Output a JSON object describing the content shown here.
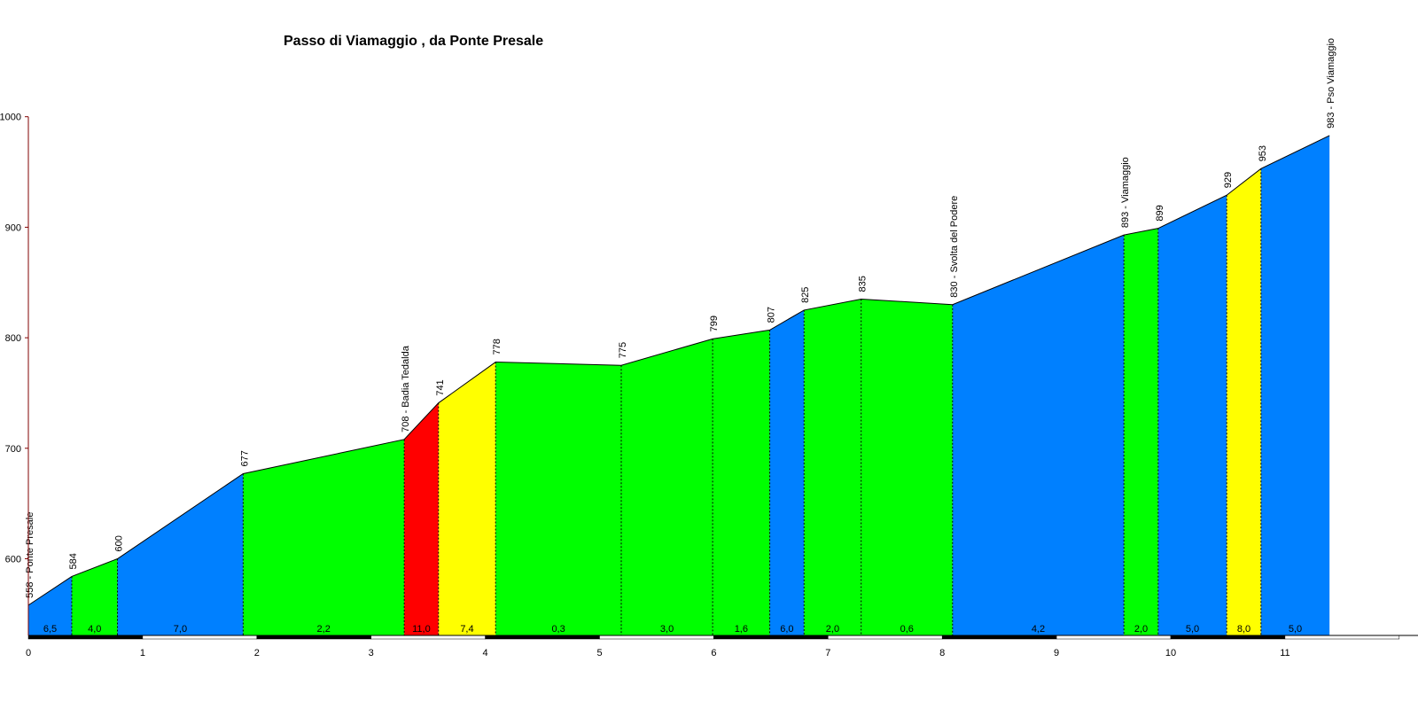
{
  "chart_data": {
    "type": "area",
    "title": "Passo di Viamaggio , da Ponte Presale",
    "xlim": [
      0,
      12
    ],
    "ylim": [
      533,
      1000
    ],
    "x_ticks": [
      "0",
      "1",
      "2",
      "3",
      "4",
      "5",
      "6",
      "7",
      "8",
      "9",
      "10",
      "11"
    ],
    "y_ticks": [
      "600",
      "700",
      "800",
      "900",
      "1000"
    ],
    "points": [
      {
        "x": 0.0,
        "y": 558,
        "label": "558 - Ponte Presale"
      },
      {
        "x": 0.38,
        "y": 584,
        "label": "584"
      },
      {
        "x": 0.78,
        "y": 600,
        "label": "600"
      },
      {
        "x": 1.88,
        "y": 677,
        "label": "677"
      },
      {
        "x": 3.29,
        "y": 708,
        "label": "708 - Badia Tedalda"
      },
      {
        "x": 3.59,
        "y": 741,
        "label": "741"
      },
      {
        "x": 4.09,
        "y": 778,
        "label": "778"
      },
      {
        "x": 5.19,
        "y": 775,
        "label": "775"
      },
      {
        "x": 5.99,
        "y": 799,
        "label": "799"
      },
      {
        "x": 6.49,
        "y": 807,
        "label": "807"
      },
      {
        "x": 6.79,
        "y": 825,
        "label": "825"
      },
      {
        "x": 7.29,
        "y": 835,
        "label": "835"
      },
      {
        "x": 8.09,
        "y": 830,
        "label": "830 - Svolta del Podere"
      },
      {
        "x": 9.59,
        "y": 893,
        "label": "893 - Viamaggio"
      },
      {
        "x": 9.89,
        "y": 899,
        "label": "899"
      },
      {
        "x": 10.49,
        "y": 929,
        "label": "929"
      },
      {
        "x": 10.79,
        "y": 953,
        "label": "953"
      },
      {
        "x": 11.39,
        "y": 983,
        "label": "983 - Pso Viamaggio"
      }
    ],
    "segments": [
      {
        "gradient": "6,5",
        "color": "#0080ff"
      },
      {
        "gradient": "4,0",
        "color": "#00ff00"
      },
      {
        "gradient": "7,0",
        "color": "#0080ff"
      },
      {
        "gradient": "2,2",
        "color": "#00ff00"
      },
      {
        "gradient": "11,0",
        "color": "#ff0000"
      },
      {
        "gradient": "7,4",
        "color": "#ffff00"
      },
      {
        "gradient": "0,3",
        "color": "#00ff00"
      },
      {
        "gradient": "3,0",
        "color": "#00ff00"
      },
      {
        "gradient": "1,6",
        "color": "#00ff00"
      },
      {
        "gradient": "6,0",
        "color": "#0080ff"
      },
      {
        "gradient": "2,0",
        "color": "#00ff00"
      },
      {
        "gradient": "0,6",
        "color": "#00ff00"
      },
      {
        "gradient": "4,2",
        "color": "#0080ff"
      },
      {
        "gradient": "2,0",
        "color": "#00ff00"
      },
      {
        "gradient": "5,0",
        "color": "#0080ff"
      },
      {
        "gradient": "8,0",
        "color": "#ffff00"
      },
      {
        "gradient": "5,0",
        "color": "#0080ff"
      }
    ],
    "colors": {
      "axis": "#800000",
      "outline": "#000000",
      "band_dark": "#000000",
      "band_light": "#ffffff"
    }
  }
}
